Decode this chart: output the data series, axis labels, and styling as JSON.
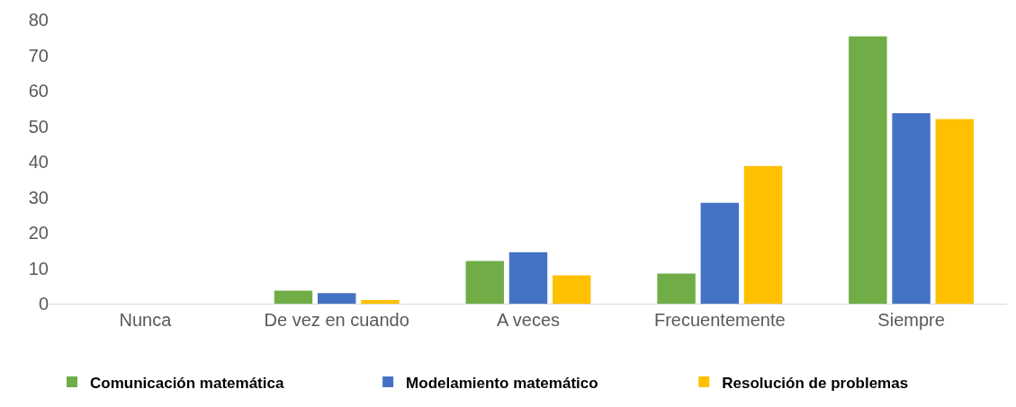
{
  "chart_data": {
    "type": "bar",
    "categories": [
      "Nunca",
      "De vez en cuando",
      "A veces",
      "Frecuentemente",
      "Siempre"
    ],
    "series": [
      {
        "name": "Comunicación matemática",
        "color": "#70ad47",
        "values": [
          0,
          3.7,
          12,
          8.5,
          75.3
        ]
      },
      {
        "name": "Modelamiento matemático",
        "color": "#4472c4",
        "values": [
          0,
          3,
          14.5,
          28.4,
          53.7
        ]
      },
      {
        "name": "Resolución de problemas",
        "color": "#ffc000",
        "values": [
          0,
          1,
          8,
          38.8,
          52
        ]
      }
    ],
    "ylim": [
      0,
      80
    ],
    "yticks": [
      0,
      10,
      20,
      30,
      40,
      50,
      60,
      70,
      80
    ],
    "grid": false,
    "legend": "bottom"
  }
}
